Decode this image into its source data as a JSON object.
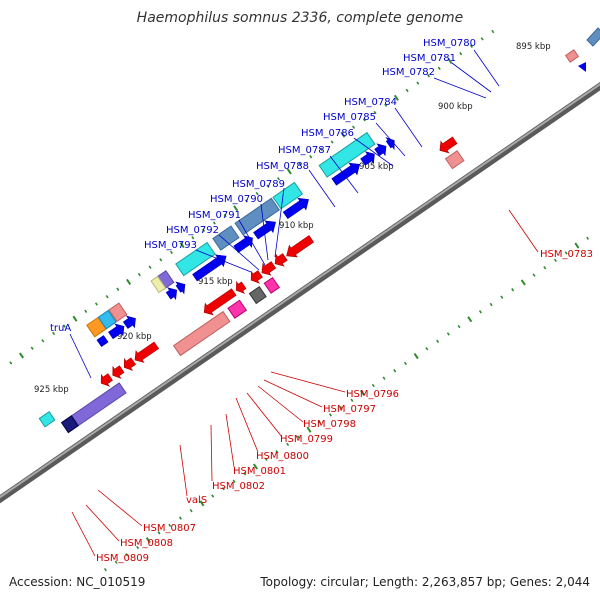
{
  "title": "Haemophilus somnus 2336, complete genome",
  "accession": "Accession: NC_010519",
  "topology": "Topology: circular; Length: 2,263,857 bp; Genes: 2,044",
  "colors": {
    "forward_label": "#0000cc",
    "reverse_label": "#cc0000",
    "backbone": "#7f7f7f",
    "tick": "#2e8b2e"
  },
  "ruler_labels": [
    "895 kbp",
    "900 kbp",
    "905 kbp",
    "910 kbp",
    "915 kbp",
    "920 kbp",
    "925 kbp"
  ],
  "forward_genes": [
    "HSM_0780",
    "HSM_0781",
    "HSM_0782",
    "HSM_0784",
    "HSM_0785",
    "HSM_0786",
    "HSM_0787",
    "HSM_0788",
    "HSM_0789",
    "HSM_0790",
    "HSM_0791",
    "HSM_0792",
    "HSM_0793",
    "truA"
  ],
  "reverse_genes": [
    "HSM_0783",
    "HSM_0796",
    "HSM_0797",
    "HSM_0798",
    "HSM_0799",
    "HSM_0800",
    "HSM_0801",
    "HSM_0802",
    "valS",
    "HSM_0807",
    "HSM_0808",
    "HSM_0809"
  ]
}
